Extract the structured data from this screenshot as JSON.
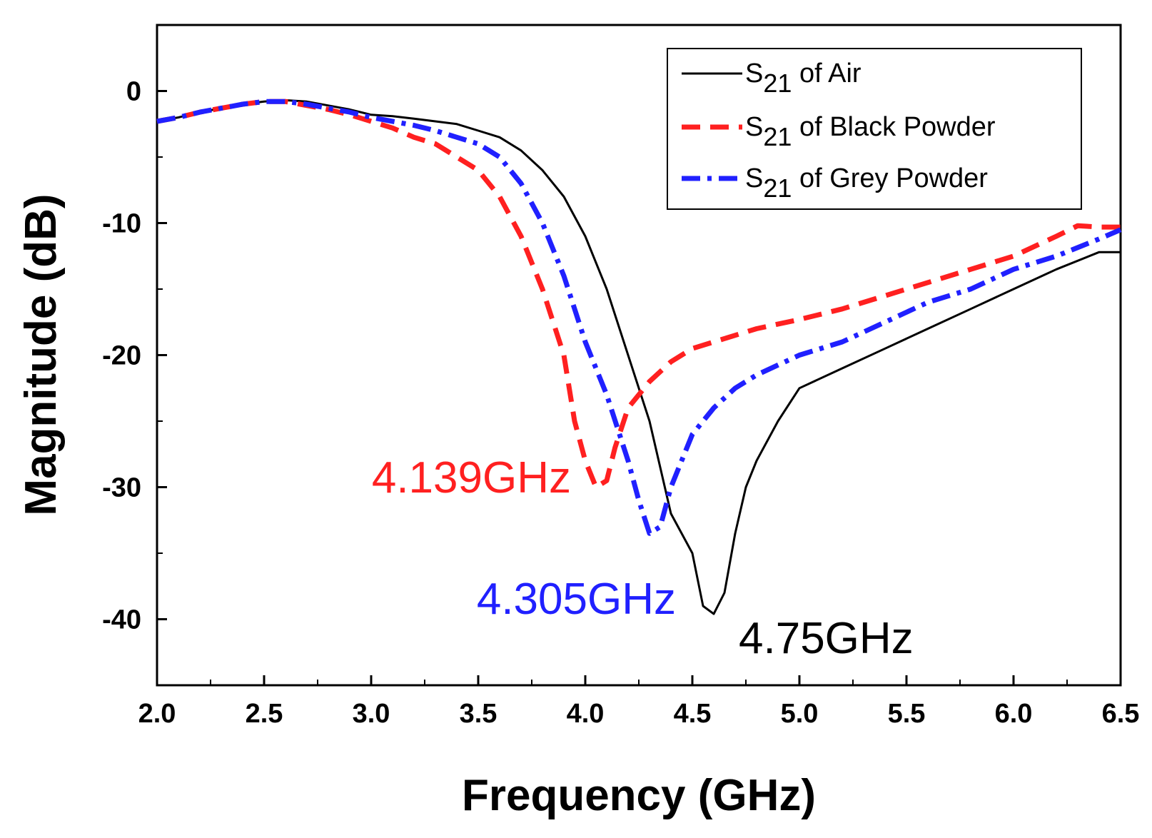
{
  "chart_data": {
    "type": "line",
    "title": "",
    "xlabel": "Frequency (GHz)",
    "ylabel": "Magnitude (dB)",
    "xlim": [
      2.0,
      6.5
    ],
    "ylim": [
      -45,
      5
    ],
    "x_ticks": [
      "2.0",
      "2.5",
      "3.0",
      "3.5",
      "4.0",
      "4.5",
      "5.0",
      "5.5",
      "6.0",
      "6.5"
    ],
    "y_ticks": [
      "0",
      "-10",
      "-20",
      "-30",
      "-40"
    ],
    "grid": false,
    "legend_position": "top-right",
    "series": [
      {
        "name": "S21 of Air",
        "legend_main": "S",
        "legend_sub": "21",
        "legend_rest": " of Air",
        "color": "#000000",
        "style": "solid",
        "x": [
          2.0,
          2.1,
          2.2,
          2.3,
          2.4,
          2.5,
          2.6,
          2.7,
          2.8,
          2.9,
          3.0,
          3.1,
          3.2,
          3.3,
          3.4,
          3.5,
          3.6,
          3.7,
          3.8,
          3.9,
          4.0,
          4.1,
          4.2,
          4.3,
          4.4,
          4.5,
          4.55,
          4.6,
          4.65,
          4.7,
          4.75,
          4.8,
          4.9,
          5.0,
          5.2,
          5.4,
          5.6,
          5.8,
          6.0,
          6.2,
          6.4,
          6.5
        ],
        "values": [
          -2.3,
          -2.0,
          -1.6,
          -1.3,
          -1.0,
          -0.8,
          -0.7,
          -0.8,
          -1.1,
          -1.4,
          -1.8,
          -1.9,
          -2.1,
          -2.3,
          -2.5,
          -3.0,
          -3.5,
          -4.5,
          -6.0,
          -8.0,
          -11.0,
          -15.0,
          -20.0,
          -25.0,
          -32.0,
          -35.0,
          -39.0,
          -39.6,
          -38.0,
          -33.5,
          -30.0,
          -28.0,
          -25.0,
          -22.5,
          -21.0,
          -19.5,
          -18.0,
          -16.5,
          -15.0,
          -13.5,
          -12.2,
          -12.2
        ]
      },
      {
        "name": "S21 of Black Powder",
        "legend_main": "S",
        "legend_sub": "21",
        "legend_rest": " of Black Powder",
        "color": "#ff2020",
        "style": "dash",
        "x": [
          2.0,
          2.1,
          2.2,
          2.3,
          2.4,
          2.5,
          2.6,
          2.7,
          2.8,
          2.9,
          3.0,
          3.1,
          3.2,
          3.3,
          3.4,
          3.5,
          3.6,
          3.7,
          3.8,
          3.9,
          3.95,
          4.0,
          4.05,
          4.1,
          4.139,
          4.2,
          4.3,
          4.4,
          4.5,
          4.6,
          4.8,
          5.0,
          5.2,
          5.4,
          5.6,
          5.8,
          6.0,
          6.2,
          6.3,
          6.4,
          6.5
        ],
        "values": [
          -2.3,
          -2.0,
          -1.6,
          -1.3,
          -1.0,
          -0.8,
          -0.8,
          -1.1,
          -1.4,
          -1.8,
          -2.3,
          -2.8,
          -3.5,
          -4.0,
          -5.0,
          -6.0,
          -8.0,
          -11.0,
          -15.0,
          -20.0,
          -25.0,
          -28.0,
          -30.0,
          -29.5,
          -27.0,
          -24.0,
          -22.0,
          -20.5,
          -19.5,
          -19.0,
          -18.0,
          -17.3,
          -16.5,
          -15.5,
          -14.5,
          -13.5,
          -12.5,
          -11.0,
          -10.2,
          -10.3,
          -10.3
        ]
      },
      {
        "name": "S21 of Grey Powder",
        "legend_main": "S",
        "legend_sub": "21",
        "legend_rest": " of Grey Powder",
        "color": "#2020ff",
        "style": "dashdot",
        "x": [
          2.0,
          2.1,
          2.2,
          2.3,
          2.4,
          2.5,
          2.6,
          2.7,
          2.8,
          2.9,
          3.0,
          3.1,
          3.2,
          3.3,
          3.4,
          3.5,
          3.6,
          3.7,
          3.8,
          3.9,
          4.0,
          4.1,
          4.15,
          4.2,
          4.25,
          4.3,
          4.35,
          4.4,
          4.5,
          4.6,
          4.7,
          4.8,
          5.0,
          5.2,
          5.4,
          5.6,
          5.8,
          6.0,
          6.2,
          6.4,
          6.5
        ],
        "values": [
          -2.3,
          -2.0,
          -1.6,
          -1.3,
          -1.0,
          -0.8,
          -0.8,
          -1.0,
          -1.3,
          -1.6,
          -2.0,
          -2.3,
          -2.6,
          -3.0,
          -3.5,
          -4.0,
          -5.0,
          -7.0,
          -10.0,
          -14.0,
          -19.0,
          -23.0,
          -25.5,
          -28.0,
          -31.0,
          -33.5,
          -33.0,
          -30.0,
          -26.0,
          -24.0,
          -22.5,
          -21.5,
          -20.0,
          -19.0,
          -17.5,
          -16.0,
          -15.0,
          -13.5,
          -12.5,
          -11.2,
          -10.5
        ]
      }
    ],
    "annotations": [
      {
        "text": "4.139GHz",
        "color": "#ff2020"
      },
      {
        "text": "4.305GHz",
        "color": "#2020ff"
      },
      {
        "text": "4.75GHz",
        "color": "#000000"
      }
    ]
  }
}
